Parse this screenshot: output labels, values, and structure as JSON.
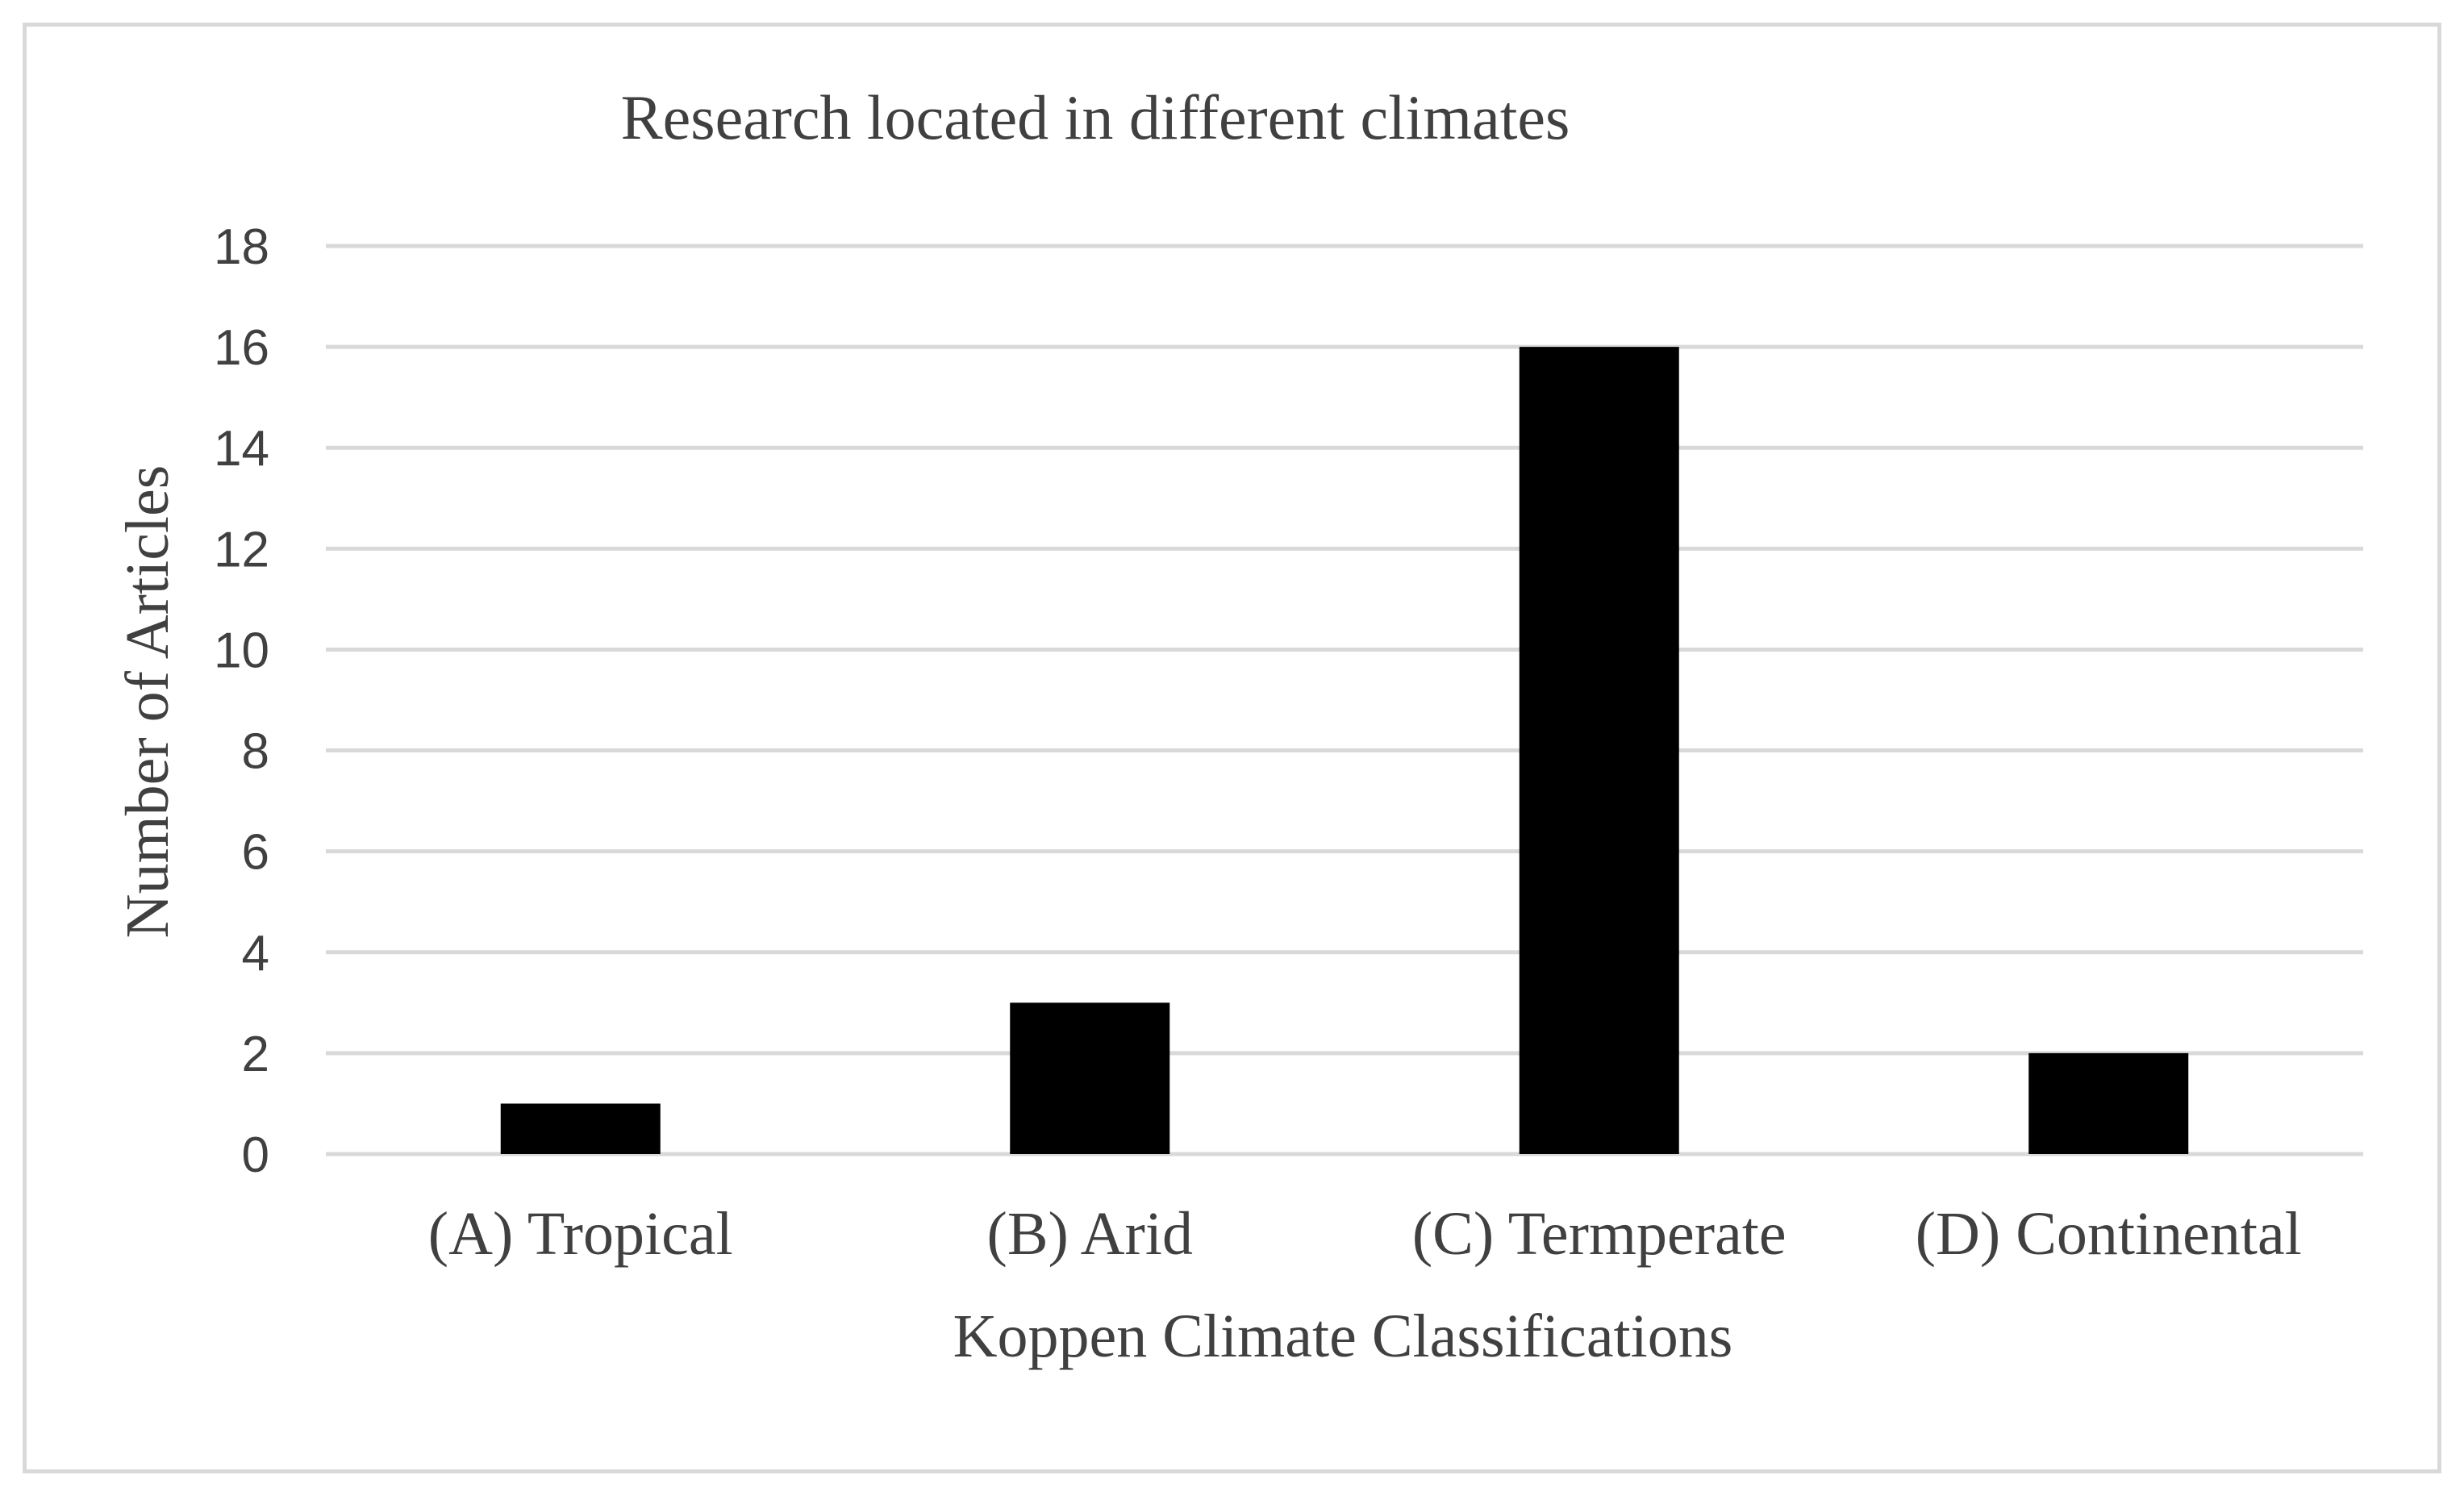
{
  "chart_data": {
    "type": "bar",
    "title": "Research located in different climates",
    "xlabel": "Koppen Climate Classifications",
    "ylabel": "Number of Articles",
    "categories": [
      "(A) Tropical",
      "(B)  Arid",
      "(C) Termperate",
      "(D) Continental"
    ],
    "values": [
      1,
      3,
      16,
      2
    ],
    "ylim": [
      0,
      18
    ],
    "yticks": [
      "0",
      "2",
      "4",
      "6",
      "8",
      "10",
      "12",
      "14",
      "16",
      "18"
    ],
    "grid": true,
    "legend": "none",
    "colors": {
      "bar": "#000000",
      "grid": "#d9d9d9",
      "text": "#404040",
      "frame": "#d9d9d9"
    }
  }
}
